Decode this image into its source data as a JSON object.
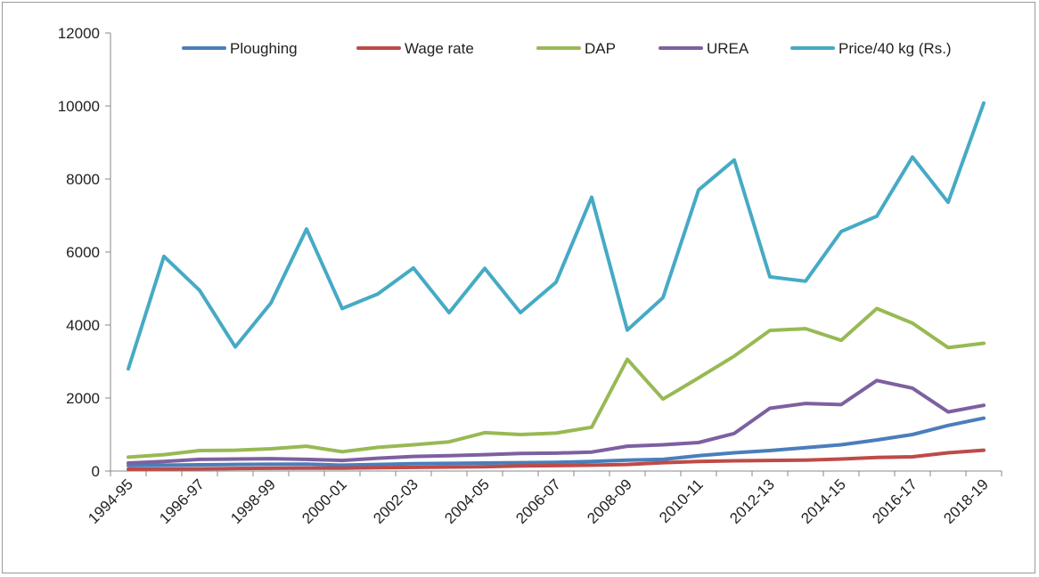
{
  "chart_data": {
    "type": "line",
    "title": "",
    "xlabel": "",
    "ylabel": "",
    "ylim": [
      0,
      12000
    ],
    "yticks": [
      0,
      2000,
      4000,
      6000,
      8000,
      10000,
      12000
    ],
    "grid": false,
    "legend_position": "top",
    "categories": [
      "1994-95",
      "1995-96",
      "1996-97",
      "1997-98",
      "1998-99",
      "1999-00",
      "2000-01",
      "2001-02",
      "2002-03",
      "2003-04",
      "2004-05",
      "2005-06",
      "2006-07",
      "2007-08",
      "2008-09",
      "2009-10",
      "2010-11",
      "2011-12",
      "2012-13",
      "2013-14",
      "2014-15",
      "2015-16",
      "2016-17",
      "2017-18",
      "2018-19"
    ],
    "tick_labels": [
      "1994-95",
      "1996-97",
      "1998-99",
      "2000-01",
      "2002-03",
      "2004-05",
      "2006-07",
      "2008-09",
      "2010-11",
      "2012-13",
      "2014-15",
      "2016-17",
      "2018-19"
    ],
    "series": [
      {
        "name": "Ploughing",
        "color": "#4a7ebb",
        "values": [
          150,
          160,
          170,
          180,
          185,
          190,
          160,
          180,
          200,
          210,
          220,
          230,
          240,
          260,
          300,
          320,
          420,
          500,
          560,
          640,
          720,
          850,
          1000,
          1250,
          1450
        ]
      },
      {
        "name": "Wage rate",
        "color": "#be4b48",
        "values": [
          50,
          55,
          60,
          70,
          75,
          80,
          80,
          90,
          100,
          110,
          120,
          140,
          150,
          160,
          180,
          230,
          260,
          280,
          290,
          300,
          330,
          370,
          390,
          500,
          570
        ]
      },
      {
        "name": "DAP",
        "color": "#98b954",
        "values": [
          380,
          450,
          560,
          570,
          610,
          680,
          530,
          650,
          720,
          800,
          1050,
          1000,
          1040,
          1200,
          3060,
          1970,
          2550,
          3150,
          3850,
          3900,
          3580,
          4450,
          4050,
          3380,
          3500
        ]
      },
      {
        "name": "UREA",
        "color": "#7d60a0",
        "values": [
          220,
          260,
          320,
          330,
          340,
          320,
          290,
          350,
          400,
          420,
          450,
          480,
          490,
          520,
          680,
          720,
          780,
          1030,
          1720,
          1850,
          1820,
          2480,
          2270,
          1620,
          1800
        ]
      },
      {
        "name": "Price/40 kg (Rs.)",
        "color": "#46aac5",
        "values": [
          2800,
          5880,
          4950,
          3400,
          4600,
          6630,
          4450,
          4850,
          5560,
          4340,
          5550,
          4340,
          5170,
          7500,
          3860,
          4750,
          7700,
          8520,
          5320,
          5200,
          6560,
          6980,
          8600,
          7360,
          10080
        ]
      }
    ]
  }
}
